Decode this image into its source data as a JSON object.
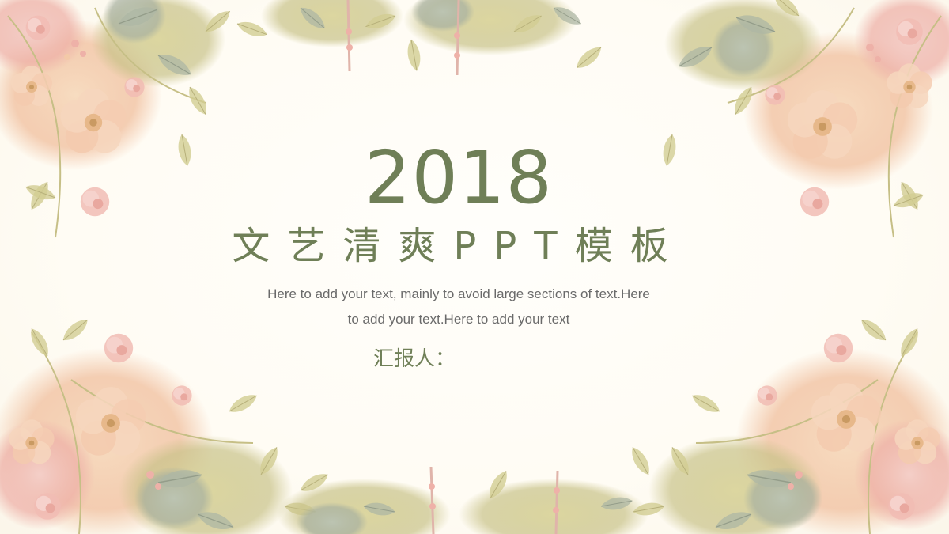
{
  "slide": {
    "year": "2018",
    "title": "文艺清爽PPT模板",
    "description_line1": "Here to add your text, mainly to avoid large sections of text.Here",
    "description_line2": "to add your text.Here to add your text",
    "reporter_label": "汇报人："
  },
  "colors": {
    "accent": "#6f7f57",
    "body_text": "#6a6a6a",
    "background": "#fffdf8",
    "petal_peach": "#f3c9a8",
    "petal_pink": "#efb7b0",
    "leaf_olive": "#c9c48a",
    "leaf_sage": "#a9b3a0"
  },
  "decoration": {
    "icon": "watercolor-floral-border-icon"
  }
}
